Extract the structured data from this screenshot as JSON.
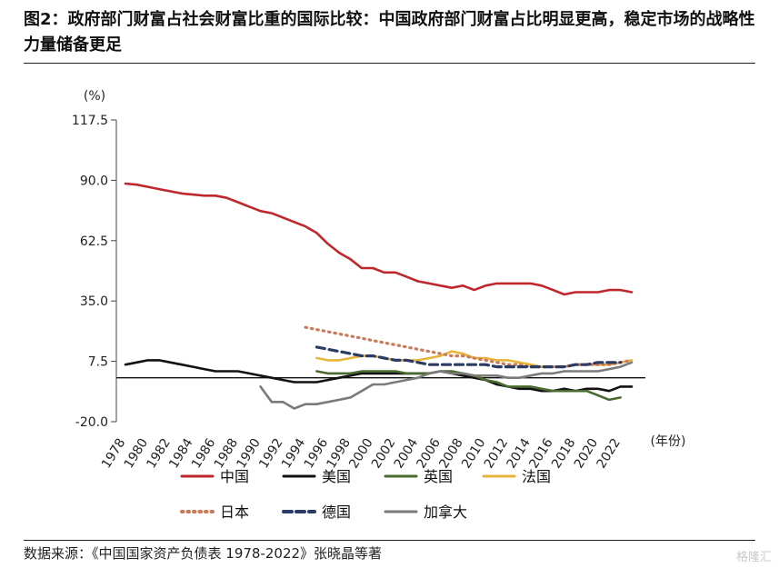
{
  "header": {
    "title": "图2：政府部门财富占社会财富比重的国际比较：中国政府部门财富占比明显更高，稳定市场的战略性力量储备更足"
  },
  "chart_data": {
    "type": "line",
    "ylabel": "(%)",
    "xlabel": "(年份)",
    "ylim": [
      -20,
      117.5
    ],
    "yticks": [
      "117.5",
      "90.0",
      "62.5",
      "35.0",
      "7.5",
      "-20.0"
    ],
    "xlim": [
      1978,
      2023
    ],
    "xticks": [
      "1978",
      "1980",
      "1982",
      "1984",
      "1986",
      "1988",
      "1990",
      "1992",
      "1994",
      "1996",
      "1998",
      "2000",
      "2002",
      "2004",
      "2006",
      "2008",
      "2010",
      "2012",
      "2014",
      "2016",
      "2018",
      "2020",
      "2022"
    ],
    "reference_line": 0,
    "legend_position": "bottom",
    "series": [
      {
        "name": "中国",
        "color": "#c0272d",
        "dash": "solid",
        "x": [
          1978,
          1979,
          1980,
          1981,
          1982,
          1983,
          1984,
          1985,
          1986,
          1987,
          1988,
          1989,
          1990,
          1991,
          1992,
          1993,
          1994,
          1995,
          1996,
          1997,
          1998,
          1999,
          2000,
          2001,
          2002,
          2003,
          2004,
          2005,
          2006,
          2007,
          2008,
          2009,
          2010,
          2011,
          2012,
          2013,
          2014,
          2015,
          2016,
          2017,
          2018,
          2019,
          2020,
          2021,
          2022,
          2023
        ],
        "y": [
          88.5,
          88,
          87,
          86,
          85,
          84,
          83.5,
          83,
          83,
          82,
          80,
          78,
          76,
          75,
          73,
          71,
          69,
          66,
          61,
          57,
          54,
          50,
          50,
          48,
          48,
          46,
          44,
          43,
          42,
          41,
          42,
          40,
          42,
          43,
          43,
          43,
          43,
          42,
          40,
          38,
          39,
          39,
          39,
          40,
          40,
          39
        ]
      },
      {
        "name": "美国",
        "color": "#111111",
        "dash": "solid",
        "x": [
          1978,
          1979,
          1980,
          1981,
          1982,
          1983,
          1984,
          1985,
          1986,
          1987,
          1988,
          1989,
          1990,
          1991,
          1992,
          1993,
          1994,
          1995,
          1996,
          1997,
          1998,
          1999,
          2000,
          2001,
          2002,
          2003,
          2004,
          2005,
          2006,
          2007,
          2008,
          2009,
          2010,
          2011,
          2012,
          2013,
          2014,
          2015,
          2016,
          2017,
          2018,
          2019,
          2020,
          2021,
          2022,
          2023
        ],
        "y": [
          6,
          7,
          8,
          8,
          7,
          6,
          5,
          4,
          3,
          3,
          3,
          2,
          1,
          0,
          -1,
          -2,
          -2,
          -2,
          -1,
          0,
          1,
          2,
          2,
          2,
          2,
          2,
          2,
          2,
          3,
          2,
          1,
          0,
          -1,
          -3,
          -4,
          -5,
          -5,
          -6,
          -6,
          -5,
          -6,
          -5,
          -5,
          -6,
          -4,
          -4
        ]
      },
      {
        "name": "英国",
        "color": "#4a6b2f",
        "dash": "solid",
        "x": [
          1995,
          1996,
          1997,
          1998,
          1999,
          2000,
          2001,
          2002,
          2003,
          2004,
          2005,
          2006,
          2007,
          2008,
          2009,
          2010,
          2011,
          2012,
          2013,
          2014,
          2015,
          2016,
          2017,
          2018,
          2019,
          2020,
          2021,
          2022
        ],
        "y": [
          3,
          2,
          2,
          2,
          3,
          3,
          3,
          3,
          2,
          2,
          2,
          3,
          3,
          2,
          1,
          -1,
          -2,
          -4,
          -4,
          -4,
          -5,
          -6,
          -6,
          -6,
          -6,
          -8,
          -10,
          -9
        ]
      },
      {
        "name": "法国",
        "color": "#e8b43c",
        "dash": "solid",
        "x": [
          1995,
          1996,
          1997,
          1998,
          1999,
          2000,
          2001,
          2002,
          2003,
          2004,
          2005,
          2006,
          2007,
          2008,
          2009,
          2010,
          2011,
          2012,
          2013,
          2014,
          2015,
          2016,
          2017,
          2018,
          2019,
          2020,
          2021,
          2022,
          2023
        ],
        "y": [
          9,
          8,
          8,
          9,
          10,
          10,
          9,
          8,
          8,
          8,
          9,
          10,
          12,
          11,
          9,
          9,
          8,
          8,
          7,
          6,
          5,
          5,
          5,
          6,
          6,
          6,
          6,
          7,
          8
        ]
      },
      {
        "name": "日本",
        "color": "#c97a5a",
        "dash": "dotted",
        "x": [
          1994,
          1995,
          1996,
          1997,
          1998,
          1999,
          2000,
          2001,
          2002,
          2003,
          2004,
          2005,
          2006,
          2007,
          2008,
          2009,
          2010,
          2011,
          2012,
          2013,
          2014,
          2015,
          2016,
          2017,
          2018,
          2019,
          2020,
          2021,
          2022,
          2023
        ],
        "y": [
          23,
          22,
          21,
          20,
          19,
          18,
          17,
          16,
          15,
          14,
          13,
          12,
          11,
          10,
          10,
          9,
          8,
          7,
          6,
          6,
          5,
          5,
          5,
          5,
          6,
          6,
          6,
          6,
          7,
          8
        ]
      },
      {
        "name": "德国",
        "color": "#2b3b66",
        "dash": "dashed",
        "x": [
          1995,
          1996,
          1997,
          1998,
          1999,
          2000,
          2001,
          2002,
          2003,
          2004,
          2005,
          2006,
          2007,
          2008,
          2009,
          2010,
          2011,
          2012,
          2013,
          2014,
          2015,
          2016,
          2017,
          2018,
          2019,
          2020,
          2021,
          2022
        ],
        "y": [
          14,
          13,
          12,
          11,
          10,
          10,
          9,
          8,
          8,
          7,
          6,
          6,
          6,
          6,
          6,
          6,
          5,
          5,
          5,
          5,
          5,
          5,
          5,
          6,
          6,
          7,
          7,
          7
        ]
      },
      {
        "name": "加拿大",
        "color": "#7a7a7a",
        "dash": "solid",
        "x": [
          1990,
          1991,
          1992,
          1993,
          1994,
          1995,
          1996,
          1997,
          1998,
          1999,
          2000,
          2001,
          2002,
          2003,
          2004,
          2005,
          2006,
          2007,
          2008,
          2009,
          2010,
          2011,
          2012,
          2013,
          2014,
          2015,
          2016,
          2017,
          2018,
          2019,
          2020,
          2021,
          2022,
          2023
        ],
        "y": [
          -4,
          -11,
          -11,
          -14,
          -12,
          -12,
          -11,
          -10,
          -9,
          -6,
          -3,
          -3,
          -2,
          -1,
          0,
          2,
          3,
          2,
          2,
          1,
          1,
          1,
          0,
          0,
          1,
          2,
          2,
          3,
          3,
          3,
          3,
          4,
          5,
          7
        ]
      }
    ]
  },
  "footer": {
    "source": "数据来源：《中国国家资产负债表 1978-2022》张晓晶等著"
  },
  "branding": {
    "watermark": "格隆汇"
  }
}
